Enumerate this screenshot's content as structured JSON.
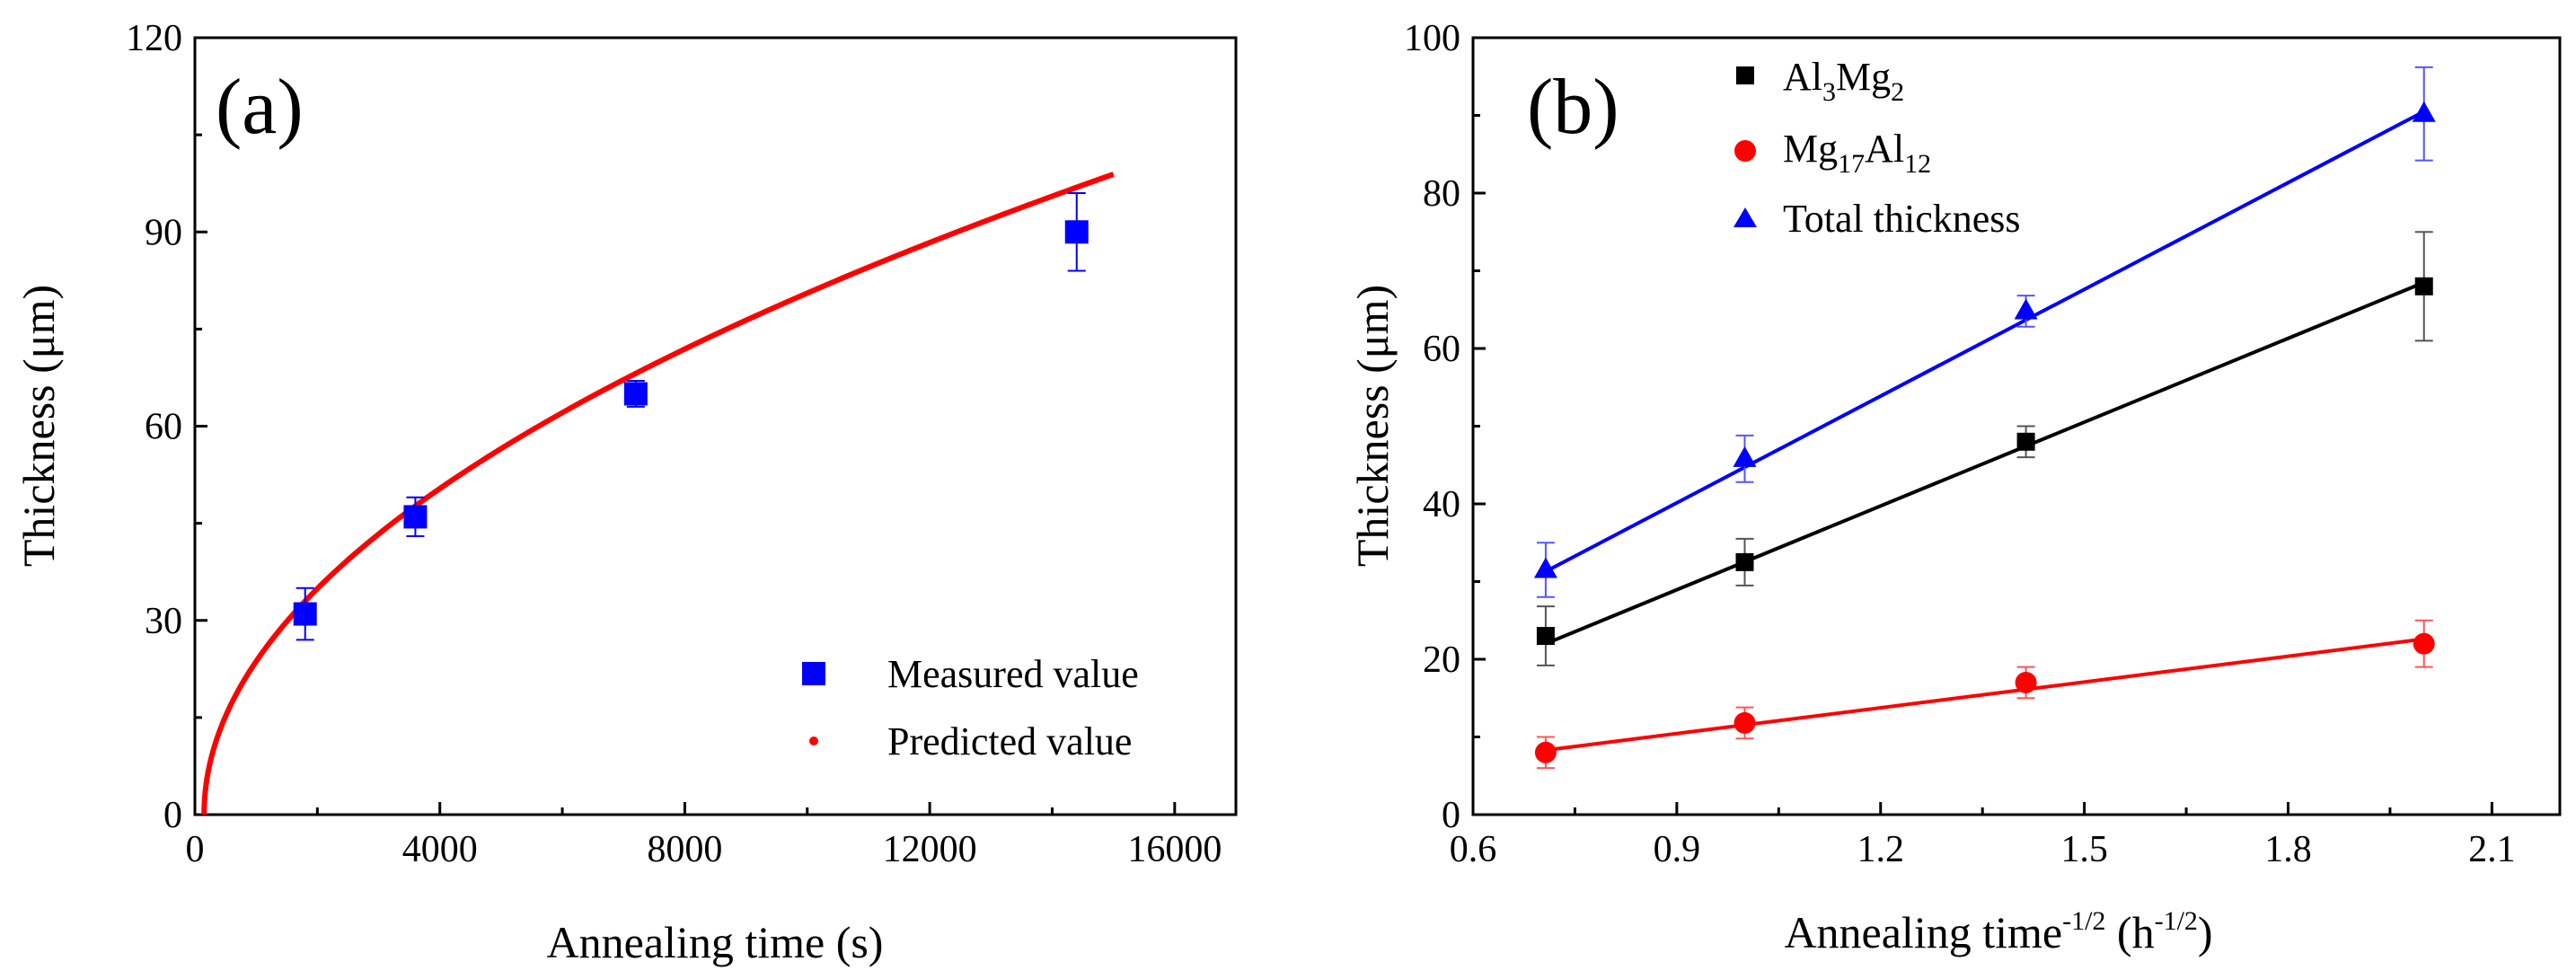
{
  "chart_data": [
    {
      "panel": "(a)",
      "type": "scatter",
      "xlabel": "Annealing time (s)",
      "ylabel": "Thickness (μm)",
      "xlim": [
        0,
        17000
      ],
      "ylim": [
        0,
        120
      ],
      "xticks": [
        0,
        4000,
        8000,
        12000,
        16000
      ],
      "yticks": [
        0,
        30,
        60,
        90,
        120
      ],
      "legend_position": "bottom-right",
      "series": [
        {
          "name": "Measured value",
          "kind": "scatter",
          "marker": "square",
          "color": "#0000ff",
          "x": [
            1800,
            3600,
            7200,
            14400
          ],
          "y": [
            31,
            46,
            65,
            90
          ],
          "err": [
            4,
            3,
            2,
            6
          ]
        },
        {
          "name": "Predicted value",
          "kind": "curve",
          "marker": "dot",
          "color": "#ff0000",
          "model": "thickness = k * sqrt(t - t0)",
          "k": 0.8117,
          "t0": 150,
          "x_range": [
            150,
            15000
          ]
        }
      ]
    },
    {
      "panel": "(b)",
      "type": "scatter",
      "xlabel_main": "Annealing time",
      "xlabel_sup": "-1/2",
      "xlabel_unit": " (h",
      "xlabel_unit_sup": "-1/2",
      "xlabel_close": ")",
      "ylabel": "Thickness (μm)",
      "xlim": [
        0.6,
        2.2
      ],
      "ylim": [
        0,
        100
      ],
      "xticks": [
        "0.6",
        "0.9",
        "1.2",
        "1.5",
        "1.8",
        "2.1"
      ],
      "yticks": [
        0,
        20,
        40,
        60,
        80,
        100
      ],
      "legend_position": "top-left",
      "x": [
        0.707,
        1.0,
        1.414,
        2.0
      ],
      "series": [
        {
          "name": "Al3Mg2",
          "label_parts": [
            "Al",
            "3",
            "Mg",
            "2"
          ],
          "marker": "square",
          "color": "#000000",
          "y": [
            23,
            32.5,
            48,
            68
          ],
          "err": [
            3.8,
            3,
            2,
            7
          ],
          "fit": [
            22,
            68.5
          ]
        },
        {
          "name": "Mg17Al12",
          "label_parts": [
            "Mg",
            "17",
            "Al",
            "12"
          ],
          "marker": "circle",
          "color": "#ff0000",
          "y": [
            8,
            11.8,
            17,
            22
          ],
          "err": [
            2,
            2,
            2,
            3
          ],
          "fit": [
            8.3,
            22.6
          ]
        },
        {
          "name": "Total thickness",
          "label": "Total thickness",
          "marker": "triangle",
          "color": "#0000ff",
          "y": [
            31.5,
            45.8,
            64.8,
            90.2
          ],
          "err": [
            3.5,
            3,
            2,
            6
          ],
          "fit": [
            31.3,
            90.5
          ]
        }
      ]
    }
  ]
}
